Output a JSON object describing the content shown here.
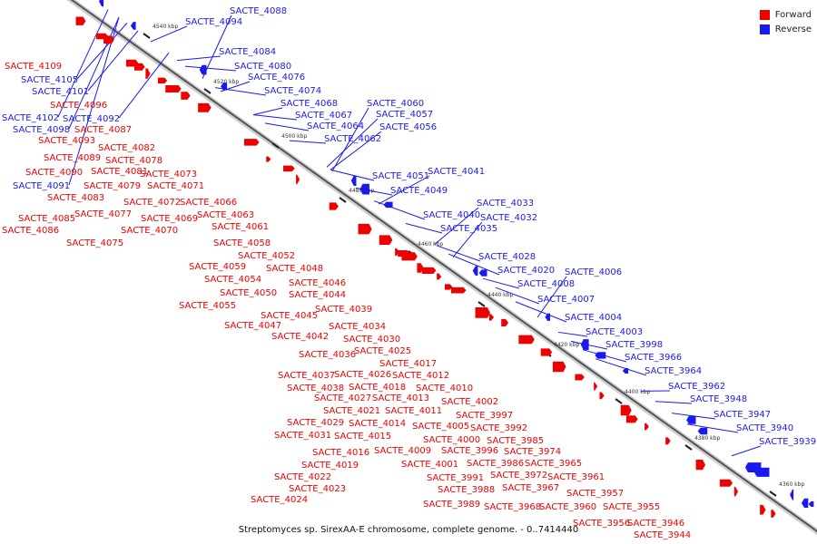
{
  "legend": {
    "forward_label": "Forward",
    "reverse_label": "Reverse",
    "forward_color": "#ee0000",
    "reverse_color": "#1a1aee"
  },
  "caption": "Streptomyces sp. SirexAA-E chromosome, complete genome. - 0..7414440",
  "colors": {
    "line": "#555555",
    "tick": "#222222"
  },
  "scale_labels": [
    "4540 kbp",
    "4520 kbp",
    "4500 kbp",
    "4480 kbp",
    "4460 kbp",
    "4440 kbp",
    "4420 kbp",
    "4400 kbp",
    "4380 kbp",
    "4360 kbp"
  ],
  "forward_labels": [
    "SACTE_4109",
    "SACTE_4096",
    "SACTE_4087",
    "SACTE_4093",
    "SACTE_4082",
    "SACTE_4089",
    "SACTE_4078",
    "SACTE_4090",
    "SACTE_4081",
    "SACTE_4073",
    "SACTE_4079",
    "SACTE_4071",
    "SACTE_4083",
    "SACTE_4072",
    "SACTE_4066",
    "SACTE_4077",
    "SACTE_4063",
    "SACTE_4085",
    "SACTE_4069",
    "SACTE_4086",
    "SACTE_4070",
    "SACTE_4061",
    "SACTE_4075",
    "SACTE_4058",
    "SACTE_4052",
    "SACTE_4059",
    "SACTE_4048",
    "SACTE_4054",
    "SACTE_4046",
    "SACTE_4050",
    "SACTE_4044",
    "SACTE_4055",
    "SACTE_4039",
    "SACTE_4045",
    "SACTE_4047",
    "SACTE_4034",
    "SACTE_4042",
    "SACTE_4030",
    "SACTE_4036",
    "SACTE_4025",
    "SACTE_4017",
    "SACTE_4037",
    "SACTE_4026",
    "SACTE_4012",
    "SACTE_4038",
    "SACTE_4018",
    "SACTE_4010",
    "SACTE_4027",
    "SACTE_4013",
    "SACTE_4002",
    "SACTE_4021",
    "SACTE_4011",
    "SACTE_3997",
    "SACTE_4029",
    "SACTE_4014",
    "SACTE_4005",
    "SACTE_3992",
    "SACTE_4031",
    "SACTE_4015",
    "SACTE_4000",
    "SACTE_3985",
    "SACTE_4016",
    "SACTE_4009",
    "SACTE_3996",
    "SACTE_3974",
    "SACTE_4019",
    "SACTE_4001",
    "SACTE_3986",
    "SACTE_3965",
    "SACTE_4022",
    "SACTE_3991",
    "SACTE_3972",
    "SACTE_3961",
    "SACTE_4023",
    "SACTE_3988",
    "SACTE_3967",
    "SACTE_3957",
    "SACTE_4024",
    "SACTE_3989",
    "SACTE_3968",
    "SACTE_3960",
    "SACTE_3955",
    "SACTE_3956",
    "SACTE_3946",
    "SACTE_3944"
  ],
  "reverse_labels": [
    "SACTE_4088",
    "SACTE_4094",
    "SACTE_4084",
    "SACTE_4080",
    "SACTE_4076",
    "SACTE_4105",
    "SACTE_4101",
    "SACTE_4074",
    "SACTE_4068",
    "SACTE_4060",
    "SACTE_4067",
    "SACTE_4057",
    "SACTE_4102",
    "SACTE_4092",
    "SACTE_4064",
    "SACTE_4056",
    "SACTE_4098",
    "SACTE_4062",
    "SACTE_4051",
    "SACTE_4041",
    "SACTE_4091",
    "SACTE_4049",
    "SACTE_4033",
    "SACTE_4040",
    "SACTE_4032",
    "SACTE_4035",
    "SACTE_4028",
    "SACTE_4020",
    "SACTE_4006",
    "SACTE_4008",
    "SACTE_4007",
    "SACTE_4004",
    "SACTE_4003",
    "SACTE_3998",
    "SACTE_3966",
    "SACTE_3964",
    "SACTE_3962",
    "SACTE_3948",
    "SACTE_3947",
    "SACTE_3940",
    "SACTE_3939"
  ]
}
